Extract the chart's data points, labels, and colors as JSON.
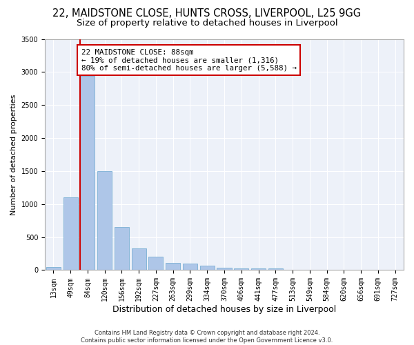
{
  "title": "22, MAIDSTONE CLOSE, HUNTS CROSS, LIVERPOOL, L25 9GG",
  "subtitle": "Size of property relative to detached houses in Liverpool",
  "xlabel": "Distribution of detached houses by size in Liverpool",
  "ylabel": "Number of detached properties",
  "categories": [
    "13sqm",
    "49sqm",
    "84sqm",
    "120sqm",
    "156sqm",
    "192sqm",
    "227sqm",
    "263sqm",
    "299sqm",
    "334sqm",
    "370sqm",
    "406sqm",
    "441sqm",
    "477sqm",
    "513sqm",
    "549sqm",
    "584sqm",
    "620sqm",
    "656sqm",
    "691sqm",
    "727sqm"
  ],
  "values": [
    50,
    1100,
    2940,
    1500,
    650,
    330,
    200,
    105,
    95,
    70,
    40,
    30,
    25,
    30,
    0,
    0,
    0,
    0,
    0,
    0,
    0
  ],
  "bar_color": "#aec6e8",
  "bar_edge_color": "#7aafd4",
  "property_line_color": "#cc0000",
  "annotation_text": "22 MAIDSTONE CLOSE: 88sqm\n← 19% of detached houses are smaller (1,316)\n80% of semi-detached houses are larger (5,588) →",
  "annotation_box_color": "#cc0000",
  "ylim": [
    0,
    3500
  ],
  "yticks": [
    0,
    500,
    1000,
    1500,
    2000,
    2500,
    3000,
    3500
  ],
  "background_color": "#edf1f9",
  "grid_color": "#ffffff",
  "footer_line1": "Contains HM Land Registry data © Crown copyright and database right 2024.",
  "footer_line2": "Contains public sector information licensed under the Open Government Licence v3.0.",
  "title_fontsize": 10.5,
  "subtitle_fontsize": 9.5,
  "tick_fontsize": 7,
  "ylabel_fontsize": 8,
  "xlabel_fontsize": 9
}
